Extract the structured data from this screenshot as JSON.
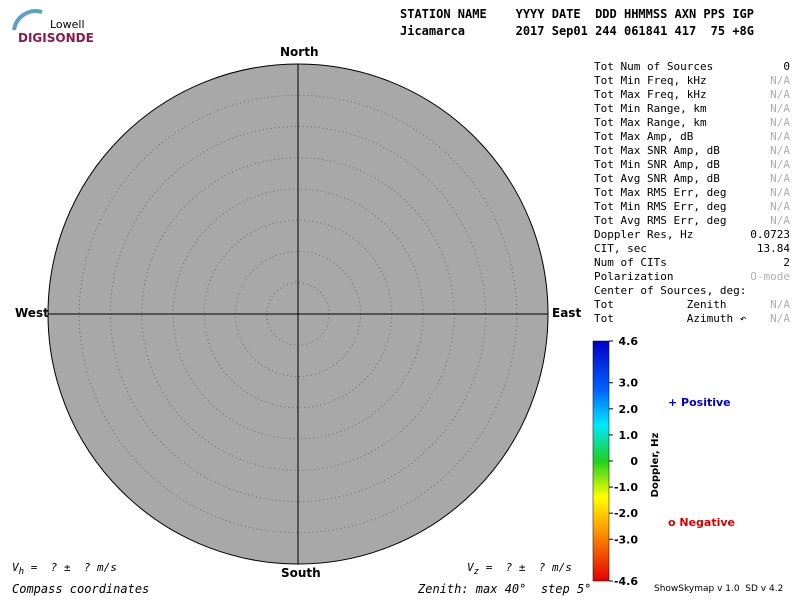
{
  "header": {
    "logo": {
      "top": "Lowell",
      "bottom": "DIGISONDE"
    },
    "line1": "STATION NAME    YYYY DATE  DDD HHMMSS AXN PPS IGP",
    "line2": "Jicamarca       2017 Sep01 244 061841 417  75 +8G"
  },
  "compass": {
    "north": "North",
    "south": "South",
    "east": "East",
    "west": "West"
  },
  "stats": [
    [
      "Tot Num of Sources",
      "0"
    ],
    [
      "Tot Min Freq, kHz",
      "N/A"
    ],
    [
      "Tot Max Freq, kHz",
      "N/A"
    ],
    [
      "Tot Min Range, km",
      "N/A"
    ],
    [
      "Tot Max Range, km",
      "N/A"
    ],
    [
      "Tot Max Amp, dB",
      "N/A"
    ],
    [
      "Tot Max SNR Amp, dB",
      "N/A"
    ],
    [
      "Tot Min SNR Amp, dB",
      "N/A"
    ],
    [
      "Tot Avg SNR Amp, dB",
      "N/A"
    ],
    [
      "Tot Max RMS Err, deg",
      "N/A"
    ],
    [
      "Tot Min RMS Err, deg",
      "N/A"
    ],
    [
      "Tot Avg RMS Err, deg",
      "N/A"
    ],
    [
      "Doppler Res, Hz",
      "0.0723"
    ],
    [
      "CIT, sec",
      "13.84"
    ],
    [
      "Num of CITs",
      "2"
    ],
    [
      "Polarization",
      "O-mode"
    ],
    [
      "Center of Sources, deg:",
      ""
    ],
    [
      "Tot           Zenith",
      "N/A"
    ],
    [
      "Tot           Azimuth ↶",
      "N/A"
    ]
  ],
  "colorbar": {
    "title": "Doppler, Hz",
    "range": [
      -4.6,
      4.6
    ],
    "ticks": [
      {
        "value": 4.6,
        "label": "4.6"
      },
      {
        "value": 3,
        "label": "3.0"
      },
      {
        "value": 2,
        "label": "2.0"
      },
      {
        "value": 1,
        "label": "1.0"
      },
      0,
      {
        "value": -1,
        "label": "-1.0"
      },
      {
        "value": -2,
        "label": "-2.0"
      },
      {
        "value": -3,
        "label": "-3.0"
      },
      {
        "value": -4.6,
        "label": "-4.6"
      }
    ]
  },
  "legend": {
    "positive": "+ Positive",
    "negative": "o Negative"
  },
  "footer": {
    "vh": {
      "symbol": "V",
      "sub": "h",
      "text": " =  ? ±  ? m/s"
    },
    "vz": {
      "symbol": "V",
      "sub": "z",
      "text": " =  ? ±  ? m/s"
    },
    "coords": "Compass coordinates",
    "zenith": "Zenith: max 40°  step 5°",
    "version": "ShowSkymap v 1.0  SD v 4.2"
  }
}
